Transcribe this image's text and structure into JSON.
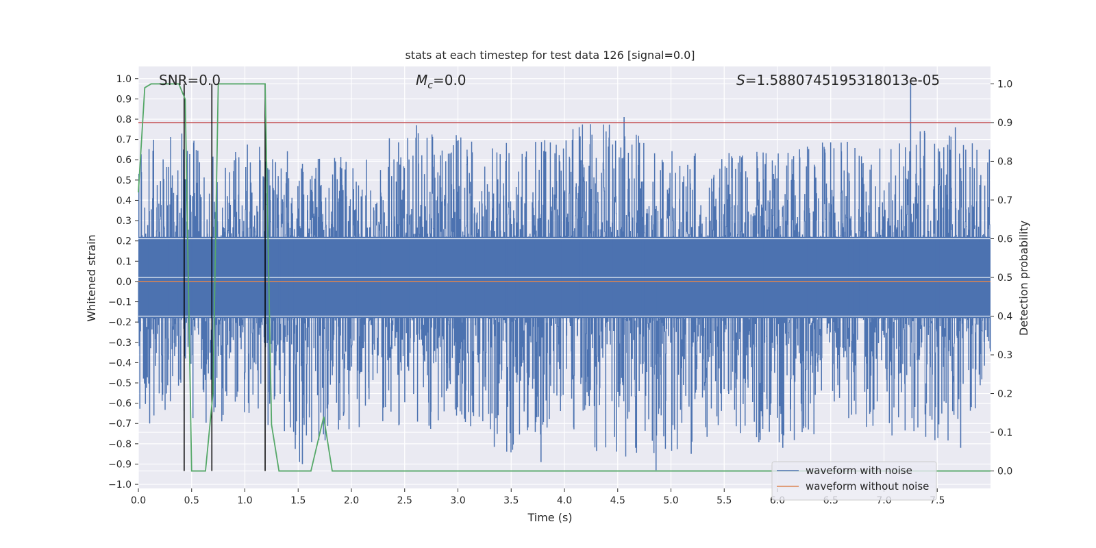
{
  "chart_data": {
    "type": "line",
    "title": "stats at each timestep for test data 126 [signal=0.0]",
    "xlabel": "Time (s)",
    "ylabel": "Whitened strain",
    "ylabel_right": "Detection probability",
    "xlim": [
      0.0,
      8.0
    ],
    "ylim": [
      -1.02,
      1.06
    ],
    "ylim_right": [
      -0.045,
      1.045
    ],
    "x_ticks": [
      "0.0",
      "0.5",
      "1.0",
      "1.5",
      "2.0",
      "2.5",
      "3.0",
      "3.5",
      "4.0",
      "4.5",
      "5.0",
      "5.5",
      "6.0",
      "6.5",
      "7.0",
      "7.5"
    ],
    "y_ticks": [
      "−1.0",
      "−0.9",
      "−0.8",
      "−0.7",
      "−0.6",
      "−0.5",
      "−0.4",
      "−0.3",
      "−0.2",
      "−0.1",
      "0.0",
      "0.1",
      "0.2",
      "0.3",
      "0.4",
      "0.5",
      "0.6",
      "0.7",
      "0.8",
      "0.9",
      "1.0"
    ],
    "y_right_ticks": [
      "0.0",
      "0.1",
      "0.2",
      "0.3",
      "0.4",
      "0.5",
      "0.6",
      "0.7",
      "0.8",
      "0.9",
      "1.0"
    ],
    "grid": true,
    "legend_position": "lower-right",
    "annotations": {
      "snr": "SNR=0.0",
      "mc_symbol": "M",
      "mc_sub": "c",
      "mc_value": "=0.0",
      "s_symbol": "S",
      "s_value": "=1.5880745195318013e-05"
    },
    "series": [
      {
        "name": "waveform with noise",
        "color": "#4c72b0",
        "axis": "left",
        "envelope": {
          "x": [
            0.0,
            0.5,
            1.0,
            1.5,
            2.0,
            2.5,
            3.0,
            3.5,
            4.0,
            4.5,
            5.0,
            5.5,
            6.0,
            6.5,
            7.0,
            7.5,
            8.0
          ],
          "upper": [
            0.72,
            0.74,
            0.68,
            0.64,
            0.62,
            0.76,
            0.73,
            0.68,
            0.76,
            0.8,
            0.66,
            0.64,
            0.66,
            0.71,
            0.7,
            0.76,
            0.67
          ],
          "lower": [
            -0.76,
            -0.72,
            -0.7,
            -0.9,
            -0.72,
            -0.71,
            -0.74,
            -0.89,
            -0.72,
            -0.92,
            -0.85,
            -0.75,
            -0.82,
            -0.72,
            -0.75,
            -0.82,
            -0.65
          ]
        },
        "peaks": [
          {
            "x": 7.25,
            "y": 0.99
          },
          {
            "x": 4.56,
            "y": 0.81
          },
          {
            "x": 2.61,
            "y": 0.77
          },
          {
            "x": 7.67,
            "y": 0.76
          },
          {
            "x": 4.86,
            "y": -0.93
          },
          {
            "x": 1.54,
            "y": -0.9
          },
          {
            "x": 3.78,
            "y": -0.89
          },
          {
            "x": 5.19,
            "y": -0.85
          },
          {
            "x": 6.05,
            "y": -0.82
          },
          {
            "x": 7.72,
            "y": -0.82
          }
        ]
      },
      {
        "name": "waveform without noise",
        "color": "#dd8452",
        "axis": "left",
        "x": [
          0.0,
          8.0
        ],
        "y": [
          0.0,
          0.0
        ]
      },
      {
        "name": "",
        "color": "#55a868",
        "axis": "right",
        "x": [
          0.0,
          0.06,
          0.12,
          0.2,
          0.3,
          0.38,
          0.44,
          0.5,
          0.55,
          0.63,
          0.7,
          0.75,
          0.8,
          0.9,
          1.0,
          1.1,
          1.19,
          1.25,
          1.32,
          1.45,
          1.62,
          1.74,
          1.82,
          2.0,
          8.0
        ],
        "y": [
          0.72,
          0.99,
          1.0,
          1.0,
          1.0,
          1.0,
          0.96,
          0.0,
          0.0,
          0.0,
          0.2,
          1.0,
          1.0,
          1.0,
          1.0,
          1.0,
          1.0,
          0.12,
          0.0,
          0.0,
          0.0,
          0.14,
          0.0,
          0.0,
          0.0
        ]
      }
    ],
    "threshold": {
      "axis": "right",
      "value": 0.9,
      "color": "#c44e52"
    },
    "vlines": {
      "x": [
        0.43,
        0.69,
        1.19
      ],
      "y_range_right": [
        0.0,
        1.0
      ],
      "color": "#000000"
    }
  }
}
